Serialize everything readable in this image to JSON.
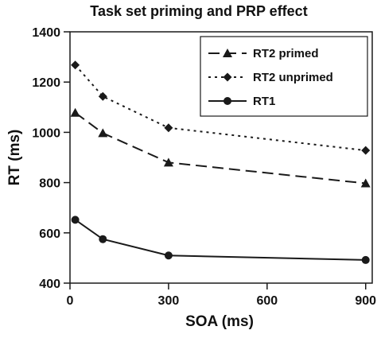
{
  "chart_data": {
    "type": "line",
    "title": "Task set priming and PRP effect",
    "xlabel": "SOA (ms)",
    "ylabel": "RT (ms)",
    "x": [
      16,
      100,
      300,
      900
    ],
    "xlim": [
      0,
      920
    ],
    "ylim": [
      400,
      1400
    ],
    "x_ticks": [
      0,
      300,
      600,
      900
    ],
    "y_ticks": [
      400,
      600,
      800,
      1000,
      1200,
      1400
    ],
    "grid": false,
    "legend_position": "top-right",
    "series": [
      {
        "name": "RT2 primed",
        "values": [
          1078,
          997,
          880,
          797
        ],
        "marker": "triangle",
        "line_style": "dashed"
      },
      {
        "name": "RT2 unprimed",
        "values": [
          1268,
          1143,
          1018,
          928
        ],
        "marker": "diamond",
        "line_style": "dotted"
      },
      {
        "name": "RT1",
        "values": [
          652,
          575,
          510,
          492
        ],
        "marker": "circle",
        "line_style": "solid"
      }
    ]
  },
  "colors": {
    "line": "#1a1a1a",
    "background": "#ffffff"
  }
}
